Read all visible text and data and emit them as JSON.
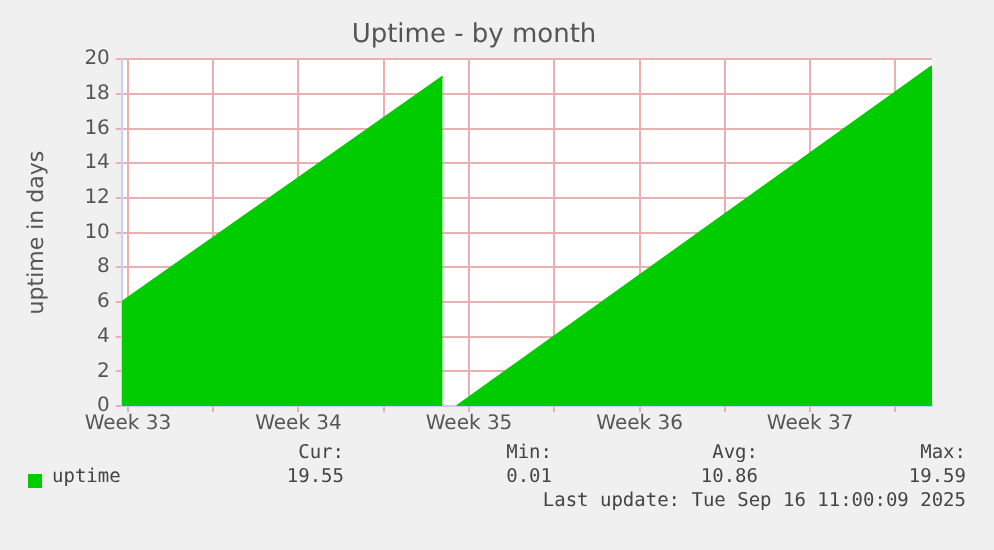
{
  "chart_data": {
    "type": "area",
    "title": "Uptime - by month",
    "ylabel": "uptime in days",
    "x": [
      "2025-08-14T06:00",
      "2025-08-27T10:00",
      "2025-08-27T18:00",
      "2025-08-28T00:00",
      "2025-09-16T12:00"
    ],
    "series": [
      {
        "name": "uptime",
        "color": "#00cc00",
        "values": [
          6.0,
          19.0,
          null,
          0.0,
          19.6
        ]
      }
    ],
    "xlim": [
      "2025-08-14T06:00",
      "2025-09-16T12:00"
    ],
    "xticks": [
      {
        "value": "2025-08-14T12:00",
        "label": "Week 33"
      },
      {
        "value": "2025-08-18",
        "label": null
      },
      {
        "value": "2025-08-21T12:00",
        "label": "Week 34"
      },
      {
        "value": "2025-08-25",
        "label": null
      },
      {
        "value": "2025-08-28T12:00",
        "label": "Week 35"
      },
      {
        "value": "2025-09-01",
        "label": null
      },
      {
        "value": "2025-09-04T12:00",
        "label": "Week 36"
      },
      {
        "value": "2025-09-08",
        "label": null
      },
      {
        "value": "2025-09-11T12:00",
        "label": "Week 37"
      },
      {
        "value": "2025-09-15",
        "label": null
      }
    ],
    "ylim": [
      0,
      20
    ],
    "yticks": [
      0,
      2,
      4,
      6,
      8,
      10,
      12,
      14,
      16,
      18,
      20
    ],
    "grid": true,
    "legend": "bottom",
    "annotations": [
      "Cur:",
      "Min:",
      "Avg:",
      "Max:",
      "19.55",
      "0.01",
      "10.86",
      "19.59",
      "Last update: Tue Sep 16 11:00:09 2025"
    ]
  }
}
